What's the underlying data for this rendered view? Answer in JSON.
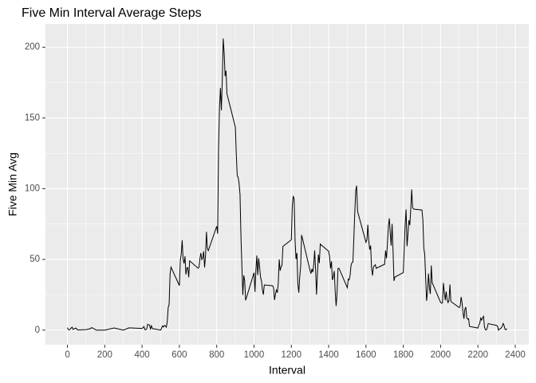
{
  "chart_data": {
    "type": "line",
    "title": "Five Min Interval Average Steps",
    "x_label": "Interval",
    "y_label": "Five Min Avg",
    "x": [
      0,
      5,
      10,
      25,
      30,
      45,
      55,
      100,
      125,
      130,
      155,
      200,
      250,
      300,
      330,
      400,
      410,
      415,
      420,
      425,
      430,
      440,
      445,
      450,
      455,
      500,
      505,
      510,
      515,
      520,
      525,
      530,
      535,
      540,
      545,
      550,
      555,
      600,
      605,
      610,
      615,
      620,
      625,
      630,
      635,
      640,
      645,
      650,
      655,
      700,
      705,
      710,
      715,
      720,
      725,
      730,
      735,
      740,
      745,
      750,
      755,
      800,
      805,
      810,
      815,
      820,
      825,
      830,
      835,
      840,
      845,
      850,
      855,
      900,
      905,
      910,
      915,
      920,
      925,
      930,
      935,
      940,
      945,
      950,
      955,
      1000,
      1005,
      1010,
      1015,
      1020,
      1025,
      1030,
      1035,
      1040,
      1045,
      1050,
      1055,
      1100,
      1105,
      1110,
      1115,
      1120,
      1125,
      1130,
      1135,
      1140,
      1145,
      1150,
      1155,
      1200,
      1205,
      1210,
      1215,
      1220,
      1225,
      1230,
      1235,
      1240,
      1245,
      1250,
      1255,
      1300,
      1305,
      1310,
      1315,
      1320,
      1325,
      1330,
      1335,
      1340,
      1345,
      1350,
      1355,
      1400,
      1405,
      1410,
      1415,
      1420,
      1425,
      1430,
      1435,
      1440,
      1445,
      1450,
      1455,
      1500,
      1505,
      1510,
      1515,
      1520,
      1525,
      1530,
      1535,
      1540,
      1545,
      1550,
      1555,
      1600,
      1605,
      1610,
      1615,
      1620,
      1625,
      1630,
      1635,
      1640,
      1645,
      1650,
      1655,
      1700,
      1705,
      1710,
      1715,
      1720,
      1725,
      1730,
      1735,
      1740,
      1745,
      1750,
      1755,
      1800,
      1805,
      1810,
      1815,
      1820,
      1825,
      1830,
      1835,
      1840,
      1845,
      1850,
      1855,
      1900,
      1905,
      1910,
      1915,
      1920,
      1925,
      1930,
      1935,
      1940,
      1945,
      1950,
      1955,
      2000,
      2005,
      2010,
      2015,
      2020,
      2025,
      2030,
      2035,
      2040,
      2045,
      2050,
      2055,
      2100,
      2105,
      2110,
      2115,
      2120,
      2125,
      2130,
      2135,
      2140,
      2145,
      2150,
      2155,
      2200,
      2205,
      2210,
      2215,
      2220,
      2225,
      2230,
      2235,
      2240,
      2245,
      2250,
      2255,
      2300,
      2305,
      2310,
      2315,
      2320,
      2325,
      2330,
      2335,
      2340,
      2345,
      2350,
      2355
    ],
    "series": [
      {
        "name": "Five Min Avg",
        "color": "#000000",
        "values": [
          1.72,
          0.34,
          0.13,
          2.09,
          0.53,
          1.47,
          0.13,
          0.32,
          1.11,
          1.83,
          0,
          0,
          1.55,
          0,
          1.62,
          1.19,
          2.57,
          0.3,
          0.36,
          0.9,
          4.1,
          3.49,
          0.83,
          3.11,
          1.11,
          0,
          1.55,
          3,
          2.25,
          3.32,
          2.96,
          2.09,
          6.06,
          16,
          18.3,
          39.5,
          44.5,
          31.5,
          49.3,
          53.8,
          63.5,
          50,
          47.1,
          52.2,
          39.3,
          44,
          44.2,
          37.4,
          49,
          43.8,
          44.4,
          50.5,
          54.5,
          49.9,
          50.98,
          55.7,
          44.3,
          52.3,
          69.5,
          57.8,
          56.2,
          73.4,
          68.2,
          129.4,
          157.5,
          171.2,
          155.4,
          177.3,
          206.2,
          195.9,
          179.6,
          183.4,
          167,
          143.5,
          124,
          109.1,
          108.1,
          103.7,
          95.97,
          66.2,
          45.2,
          24.8,
          38.75,
          34.98,
          21.06,
          40.57,
          26.98,
          42.4,
          52.7,
          38.9,
          50.8,
          44.3,
          37.4,
          34.7,
          28.3,
          25.1,
          31.9,
          31.4,
          29.7,
          21.3,
          25.5,
          28.4,
          26.5,
          33.4,
          49.98,
          42,
          44.6,
          46,
          59.2,
          63.9,
          87.7,
          94.8,
          92.8,
          63.4,
          50.2,
          54.5,
          32.4,
          26.5,
          37.7,
          45.1,
          67.3,
          42.3,
          39.9,
          43.3,
          40.98,
          46.2,
          56.4,
          42.75,
          25.1,
          39.96,
          53.5,
          47.3,
          60.8,
          55.75,
          51.96,
          43.6,
          48.7,
          35.5,
          37.5,
          41.8,
          27.5,
          17.1,
          26.1,
          43.6,
          43.8,
          30,
          36.1,
          35.5,
          38.8,
          45.96,
          47.75,
          48.1,
          65.3,
          82.9,
          98.7,
          102.1,
          83.96,
          62.1,
          64.1,
          74.5,
          63.2,
          56.9,
          59.8,
          43.9,
          38.6,
          44.7,
          45.5,
          46.2,
          43.7,
          46.6,
          56.3,
          50.7,
          61.2,
          73.4,
          79,
          68.9,
          59.7,
          75.1,
          56.5,
          34.8,
          37.5,
          40.7,
          58,
          74.7,
          85.3,
          59.3,
          67.8,
          77.7,
          74.2,
          85.3,
          99.5,
          86.6,
          85.6,
          84.9,
          77.8,
          58,
          53.4,
          36.3,
          20.7,
          27.4,
          40,
          30.2,
          25.5,
          45.7,
          33.5,
          19.6,
          19,
          19.3,
          33.3,
          26.8,
          21.2,
          27.3,
          21.3,
          19.5,
          21.3,
          32.3,
          20.2,
          15.9,
          17.2,
          23.45,
          19.2,
          12.5,
          8,
          14.7,
          16.3,
          8.7,
          7.8,
          8.1,
          2.6,
          1.45,
          3.7,
          4.8,
          8.5,
          7.1,
          8.7,
          9.75,
          2.2,
          0.3,
          0.1,
          1.6,
          4.6,
          3.3,
          2.85,
          0,
          0.8,
          0.96,
          1.6,
          2.6,
          4.7,
          3.3,
          0.64,
          0.23,
          1.08
        ]
      }
    ],
    "xlim": [
      -117.75,
      2472.75
    ],
    "xticks": [
      0,
      200,
      400,
      600,
      800,
      1000,
      1200,
      1400,
      1600,
      1800,
      2000,
      2200,
      2400
    ],
    "ylim": [
      -10.31,
      216.48
    ],
    "yticks": [
      0,
      50,
      100,
      150,
      200
    ],
    "grid": true
  }
}
